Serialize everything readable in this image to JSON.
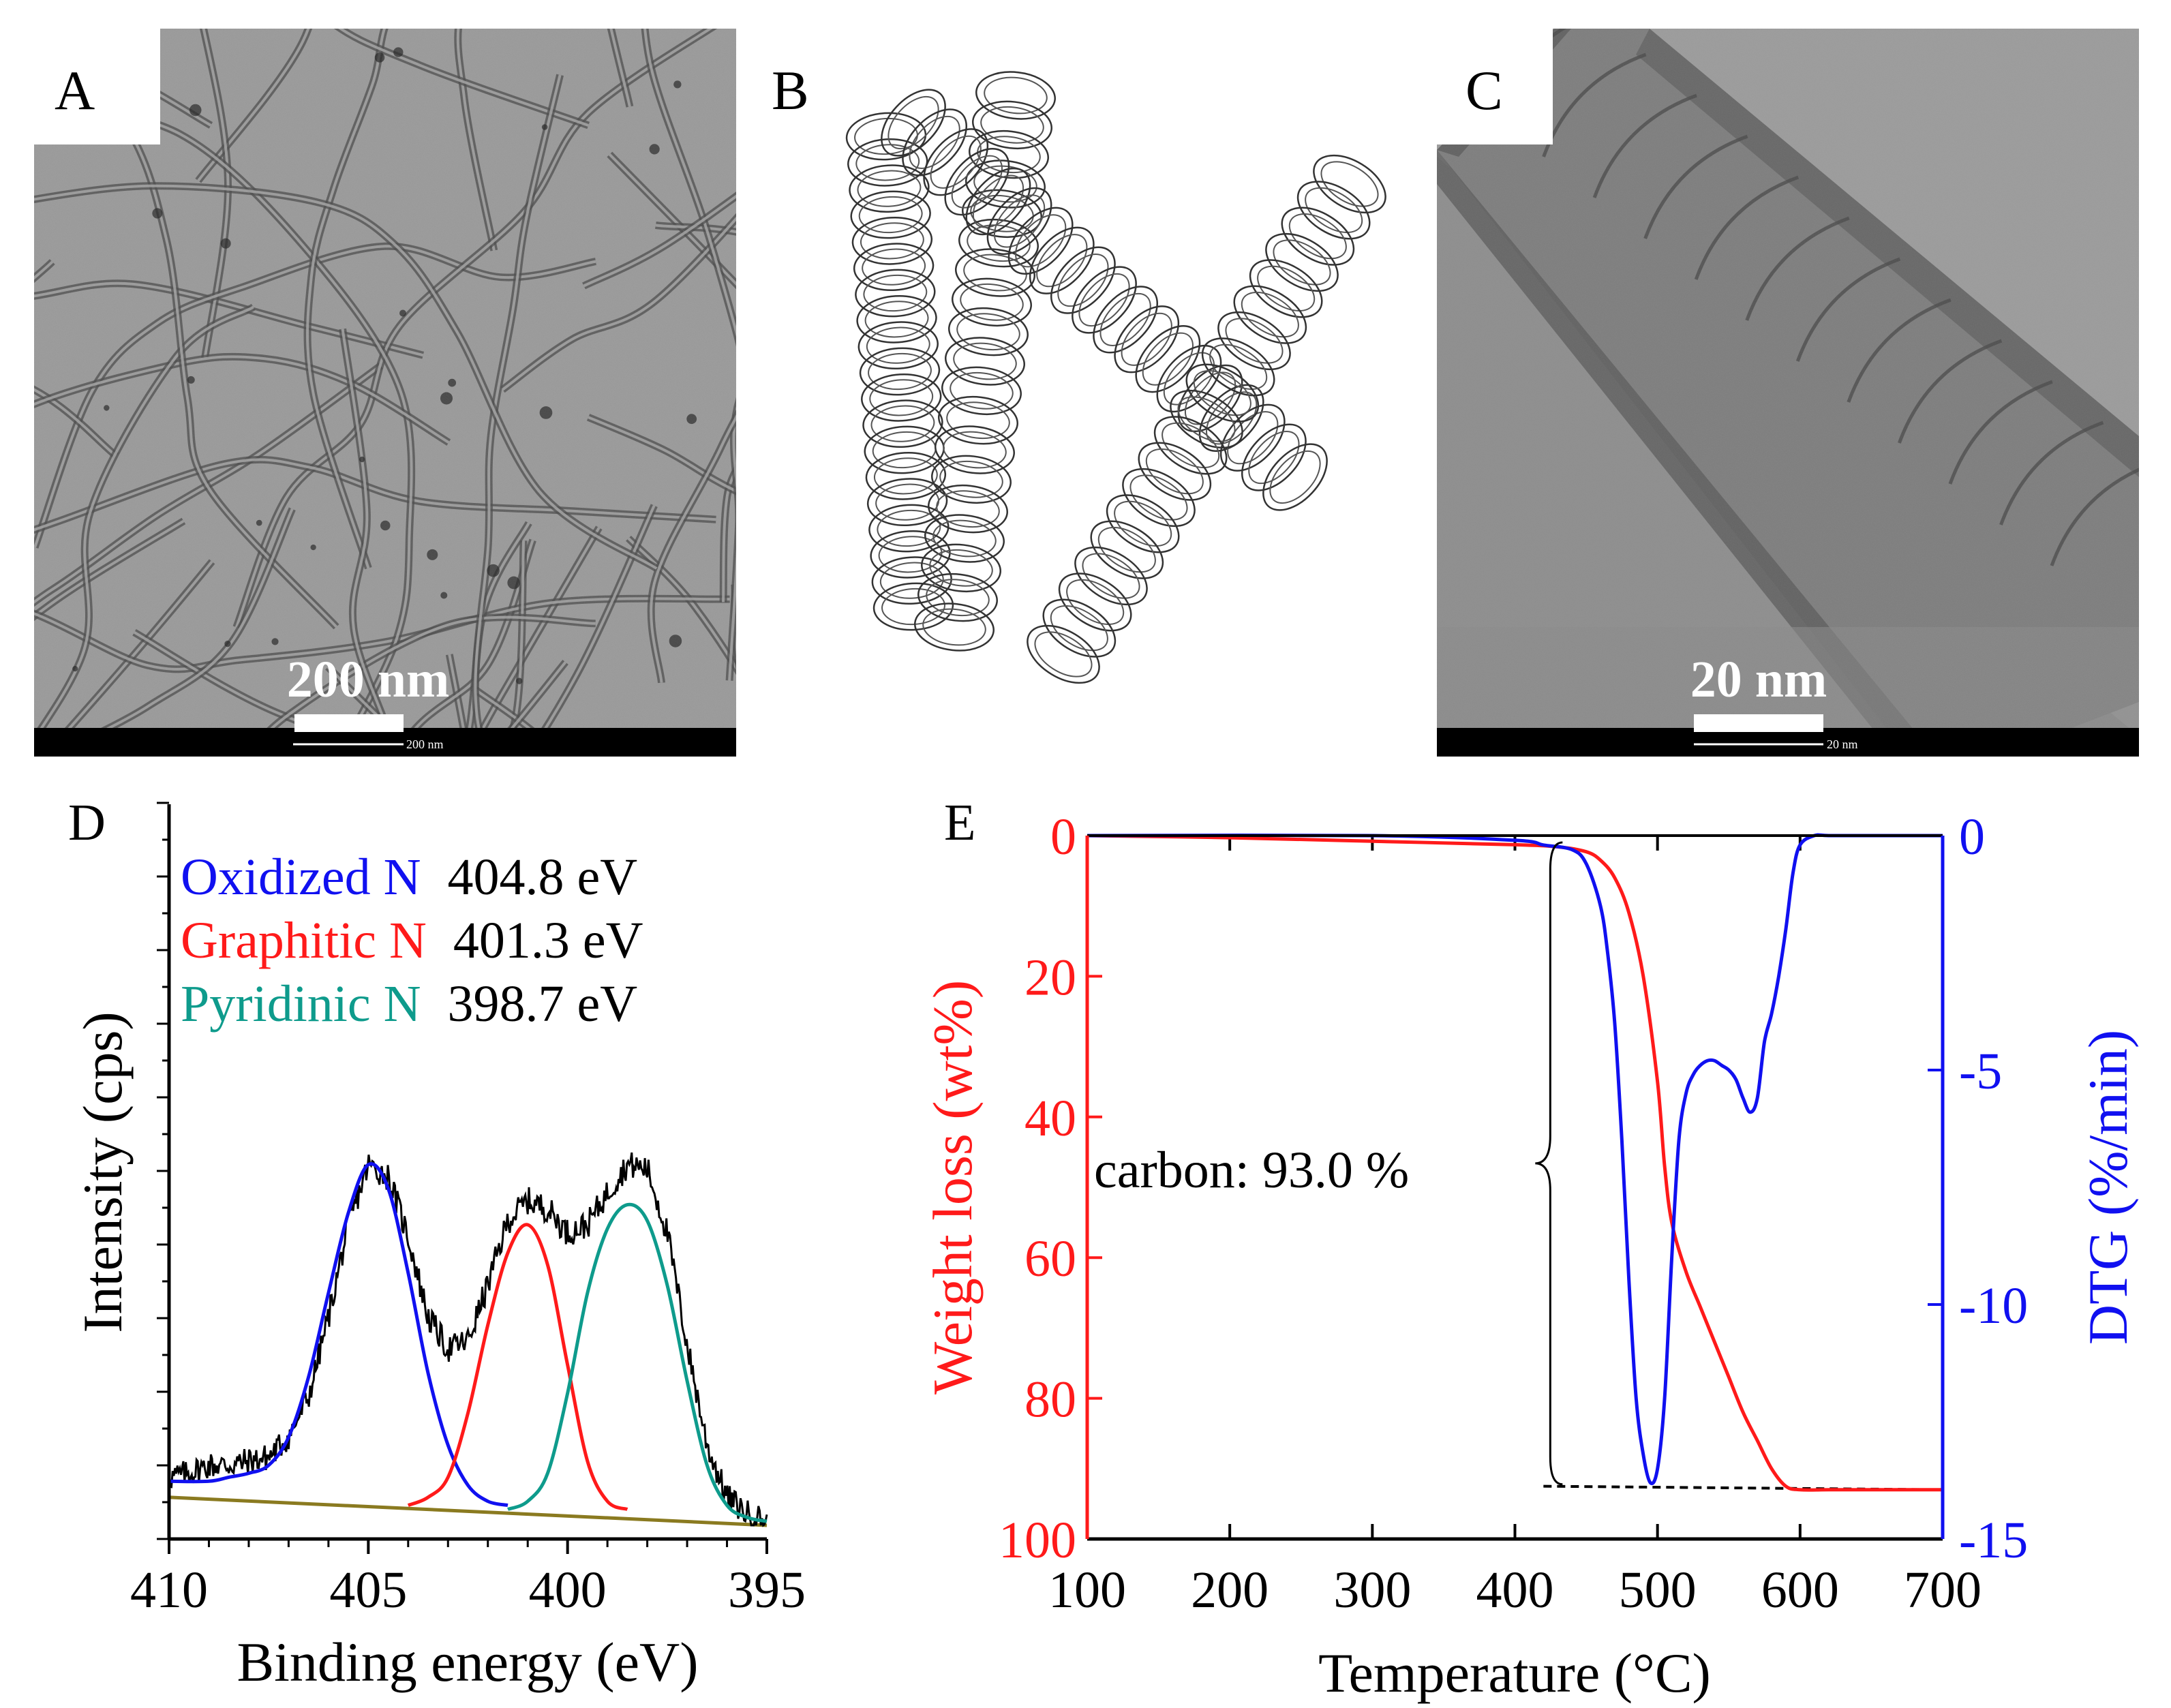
{
  "panels": {
    "A": {
      "letter": "A",
      "scale_label": "200 nm",
      "scale_small_label": "200 nm"
    },
    "B": {
      "letter": "B"
    },
    "C": {
      "letter": "C",
      "scale_label": "20 nm",
      "scale_small_label": "20 nm"
    },
    "D": {
      "letter": "D"
    },
    "E": {
      "letter": "E"
    }
  },
  "chart_data": [
    {
      "panel": "D",
      "type": "line",
      "title": "",
      "xlabel": "Binding energy (eV)",
      "ylabel": "Intensity (cps)",
      "xlim": [
        410,
        395
      ],
      "x_reversed": true,
      "xticks": [
        410,
        405,
        400,
        395
      ],
      "ylim": [
        0,
        100
      ],
      "y_tick_labels_shown": false,
      "legend": [
        {
          "name": "Oxidized N",
          "energy": "404.8 eV",
          "color": "#1010f0"
        },
        {
          "name": "Graphitic N",
          "energy": "401.3 eV",
          "color": "#ff1a1a"
        },
        {
          "name": "Pyridinic N",
          "energy": "398.7 eV",
          "color": "#0e9b8c"
        }
      ],
      "baseline": {
        "x": [
          410,
          395
        ],
        "y": [
          7,
          0
        ]
      },
      "series": [
        {
          "name": "Measured spectrum",
          "color": "#000000",
          "noise_amp": 3.5,
          "x": [
            410,
            409.5,
            409,
            408.5,
            408,
            407.5,
            407,
            406.5,
            406,
            405.5,
            405,
            404.5,
            404,
            403.5,
            403,
            402.5,
            402,
            401.5,
            401,
            400.5,
            400,
            399.5,
            399,
            398.5,
            398,
            397.5,
            397,
            396.5,
            396,
            395.5,
            395
          ],
          "y": [
            12,
            13,
            15,
            15,
            16,
            17,
            22,
            32,
            52,
            75,
            90,
            87,
            72,
            52,
            44,
            46,
            60,
            76,
            81,
            79,
            73,
            75,
            83,
            90,
            89,
            73,
            45,
            20,
            7,
            3,
            1
          ]
        },
        {
          "name": "Oxidized N",
          "color": "#1010f0",
          "x": [
            410,
            409,
            408.5,
            408,
            407.5,
            407,
            406.5,
            406,
            405.5,
            405,
            404.5,
            404,
            403.5,
            403,
            402.5,
            402,
            401.5
          ],
          "y": [
            11,
            11,
            12,
            13,
            15,
            22,
            37,
            58,
            78,
            90,
            84,
            63,
            38,
            20,
            10,
            6,
            5
          ]
        },
        {
          "name": "Graphitic N",
          "color": "#ff1a1a",
          "x": [
            404,
            403.5,
            403,
            402.5,
            402,
            401.5,
            401,
            400.5,
            400,
            399.5,
            399,
            398.5
          ],
          "y": [
            5,
            7,
            12,
            28,
            50,
            68,
            75,
            65,
            40,
            16,
            6,
            4
          ]
        },
        {
          "name": "Pyridinic N",
          "color": "#0e9b8c",
          "x": [
            401.5,
            401,
            400.5,
            400,
            399.5,
            399,
            398.5,
            398,
            397.5,
            397,
            396.5,
            396,
            395.5,
            395
          ],
          "y": [
            4,
            6,
            13,
            33,
            58,
            74,
            80,
            76,
            60,
            36,
            15,
            5,
            2,
            1
          ]
        }
      ]
    },
    {
      "panel": "E",
      "type": "line",
      "title": "",
      "xlabel": "Temperature (°C)",
      "ylabel_left": "Weight loss (wt%)",
      "ylabel_right": "DTG (%/min)",
      "xlim": [
        100,
        700
      ],
      "xticks": [
        100,
        200,
        300,
        400,
        500,
        600,
        700
      ],
      "ylim_left": [
        0,
        100
      ],
      "left_reversed": true,
      "yticks_left": [
        0,
        20,
        40,
        60,
        80,
        100
      ],
      "ylim_right": [
        -15,
        0
      ],
      "yticks_right": [
        0,
        -5,
        -10,
        -15
      ],
      "left_color": "#ff1a1a",
      "right_color": "#1010f0",
      "annotation": {
        "text": "carbon: 93.0 %",
        "value": 93.0,
        "bracket_from_pct": 0,
        "bracket_to_pct": 93,
        "bracket_x": 420
      },
      "dashed_line": {
        "x": [
          420,
          700
        ],
        "y": [
          92.5,
          93
        ],
        "axis": "left"
      },
      "series": [
        {
          "name": "Weight loss",
          "axis": "left",
          "color": "#ff1a1a",
          "x": [
            100,
            200,
            300,
            400,
            430,
            450,
            460,
            470,
            480,
            490,
            500,
            505,
            510,
            520,
            530,
            540,
            550,
            560,
            570,
            580,
            590,
            600,
            620,
            650,
            700
          ],
          "y": [
            0,
            0.3,
            0.8,
            1.3,
            1.6,
            2.3,
            3.5,
            6,
            11,
            20,
            35,
            47,
            55,
            62,
            67,
            72,
            77,
            82,
            86,
            90,
            92.5,
            93,
            93,
            93,
            93
          ]
        },
        {
          "name": "DTG",
          "axis": "right",
          "color": "#1010f0",
          "x": [
            100,
            300,
            400,
            420,
            440,
            450,
            460,
            465,
            470,
            475,
            480,
            485,
            490,
            495,
            500,
            505,
            510,
            515,
            520,
            525,
            530,
            535,
            540,
            545,
            550,
            555,
            560,
            565,
            570,
            575,
            580,
            585,
            590,
            595,
            600,
            610,
            620,
            650,
            700
          ],
          "y": [
            0,
            0,
            -0.1,
            -0.2,
            -0.3,
            -0.6,
            -1.5,
            -2.5,
            -4,
            -6.5,
            -9.5,
            -12,
            -13.2,
            -13.8,
            -13.5,
            -12,
            -9,
            -6.5,
            -5.5,
            -5.1,
            -4.9,
            -4.8,
            -4.8,
            -4.9,
            -5,
            -5.2,
            -5.6,
            -5.9,
            -5.6,
            -4.4,
            -3.8,
            -3,
            -2,
            -0.8,
            -0.2,
            0,
            0,
            0,
            0
          ]
        }
      ]
    }
  ]
}
